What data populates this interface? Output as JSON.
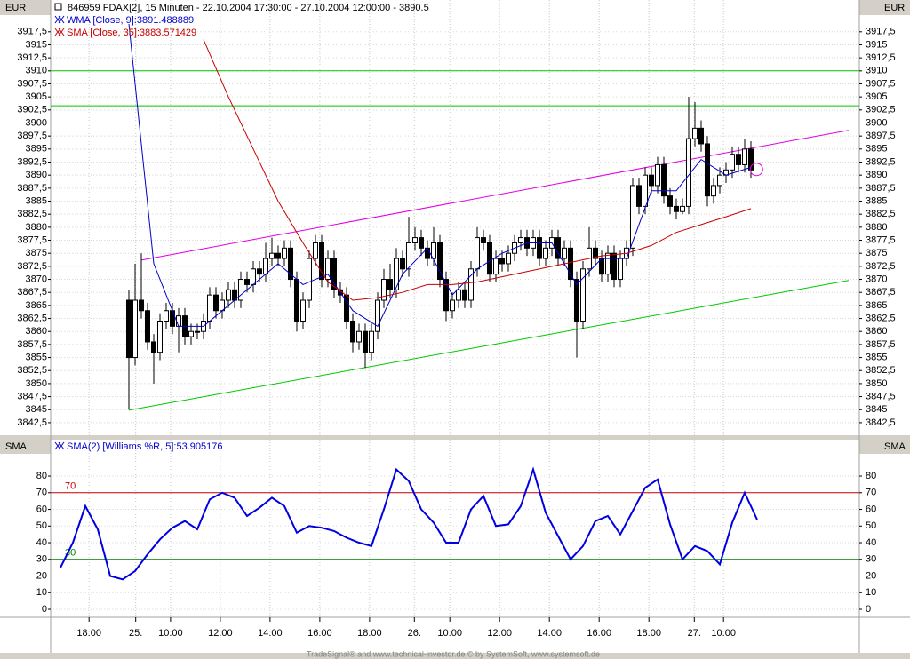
{
  "chart_data": [
    {
      "type": "candlestick",
      "title": "846959  FDAX[2], 15 Minuten - 22.10.2004 17:30:00 - 27.10.2004 12:00:00 - 3890.5",
      "y_label": "EUR",
      "xlim": [
        -12.57,
        117.43
      ],
      "ylim": [
        3840.1,
        3923.6
      ],
      "grid": true,
      "yticks": [
        {
          "value": 3842.5,
          "label": "3842,5"
        },
        3845,
        {
          "value": 3847.5,
          "label": "3847,5"
        },
        3850,
        {
          "value": 3852.5,
          "label": "3852,5"
        },
        3855,
        {
          "value": 3857.5,
          "label": "3857,5"
        },
        3860,
        {
          "value": 3862.5,
          "label": "3862,5"
        },
        3865,
        {
          "value": 3867.5,
          "label": "3867,5"
        },
        3870,
        {
          "value": 3872.5,
          "label": "3872,5"
        },
        3875,
        {
          "value": 3877.5,
          "label": "3877,5"
        },
        3880,
        {
          "value": 3882.5,
          "label": "3882,5"
        },
        3885,
        {
          "value": 3887.5,
          "label": "3887,5"
        },
        3890,
        {
          "value": 3892.5,
          "label": "3892,5"
        },
        3895,
        {
          "value": 3897.5,
          "label": "3897,5"
        },
        3900,
        {
          "value": 3902.5,
          "label": "3902,5"
        },
        3905,
        {
          "value": 3907.5,
          "label": "3907,5"
        },
        3910,
        {
          "value": 3912.5,
          "label": "3912,5"
        },
        3915,
        {
          "value": 3917.5,
          "label": "3917,5"
        }
      ],
      "x": [
        0,
        1,
        2,
        3,
        4,
        5,
        6,
        7,
        8,
        9,
        10,
        11,
        12,
        13,
        14,
        15,
        16,
        17,
        18,
        19,
        20,
        21,
        22,
        23,
        24,
        25,
        26,
        27,
        28,
        29,
        30,
        31,
        32,
        33,
        34,
        35,
        36,
        37,
        38,
        39,
        40,
        41,
        42,
        43,
        44,
        45,
        46,
        47,
        48,
        49,
        50,
        51,
        52,
        53,
        54,
        55,
        56,
        57,
        58,
        59,
        60,
        61,
        62,
        63,
        64,
        65,
        66,
        67,
        68,
        69,
        70,
        71,
        72,
        73,
        74,
        75,
        76,
        77,
        78,
        79,
        80,
        81,
        82,
        83,
        84,
        85,
        86,
        87,
        88,
        89,
        90,
        91,
        92,
        93,
        94,
        95,
        96,
        97,
        98,
        99,
        100
      ],
      "open": [
        3866,
        3855,
        3866,
        3864,
        3858,
        3856,
        3862,
        3864,
        3861,
        3863,
        3859,
        3860,
        3860,
        3862,
        3867,
        3864,
        3866,
        3868,
        3866,
        3870,
        3869,
        3872,
        3871,
        3874,
        3875,
        3874,
        3876,
        3870,
        3862,
        3866,
        3874,
        3877,
        3870,
        3874,
        3868,
        3867,
        3862,
        3858,
        3860,
        3856,
        3860,
        3866,
        3870,
        3868,
        3874,
        3872,
        3877,
        3878,
        3876,
        3874,
        3877,
        3870,
        3864,
        3866,
        3868,
        3866,
        3872,
        3878,
        3877,
        3871,
        3874,
        3873,
        3875,
        3877,
        3878,
        3876,
        3878,
        3874,
        3876,
        3878,
        3874,
        3876,
        3870,
        3862,
        3872,
        3876,
        3874,
        3871,
        3875,
        3870,
        3874,
        3876,
        3888,
        3884,
        3890,
        3888,
        3892,
        3886,
        3884,
        3883,
        3884,
        3897,
        3899,
        3896,
        3886,
        3888,
        3890,
        3891,
        3894,
        3892,
        3895
      ],
      "high": [
        3868,
        3873,
        3875,
        3865.5,
        3859.5,
        3863.5,
        3865.5,
        3865.5,
        3864.5,
        3864.5,
        3861.5,
        3861.5,
        3863.5,
        3868.5,
        3868.5,
        3867.5,
        3869.5,
        3869.5,
        3871.5,
        3871.5,
        3873.5,
        3873.5,
        3877,
        3878,
        3876.5,
        3877.5,
        3877.5,
        3871.5,
        3867.5,
        3875.5,
        3878.5,
        3878.5,
        3875.5,
        3875.5,
        3869.5,
        3868.5,
        3863.5,
        3861.5,
        3861.5,
        3861.5,
        3867.5,
        3872,
        3873,
        3876,
        3875.5,
        3882,
        3880,
        3879.5,
        3877.5,
        3880,
        3878.5,
        3871.5,
        3867.5,
        3869.5,
        3869.5,
        3873.5,
        3880,
        3879.5,
        3878.5,
        3875.5,
        3875.5,
        3876.5,
        3878.5,
        3879.5,
        3879.5,
        3879.5,
        3879.5,
        3877.5,
        3879.5,
        3879.5,
        3877.5,
        3877.5,
        3871.5,
        3873.5,
        3880,
        3877.5,
        3875.5,
        3876.5,
        3876.5,
        3875.5,
        3877.5,
        3889.5,
        3889.5,
        3891.5,
        3891.5,
        3893.5,
        3893.5,
        3887.5,
        3885.5,
        3885.5,
        3905,
        3904,
        3900.5,
        3897.5,
        3889.5,
        3891.5,
        3892.5,
        3895.5,
        3895.5,
        3897,
        3896.5
      ],
      "low": [
        3845,
        3853.5,
        3862.5,
        3856.5,
        3850,
        3854.5,
        3860.5,
        3859.5,
        3856,
        3857.5,
        3857.5,
        3858.5,
        3858.5,
        3860.5,
        3862.5,
        3862.5,
        3864.5,
        3864.5,
        3864.5,
        3867.5,
        3867.5,
        3869.5,
        3869.5,
        3872.5,
        3872.5,
        3872.5,
        3868.5,
        3860,
        3860.5,
        3864.5,
        3872.5,
        3868.5,
        3868.5,
        3866.5,
        3865.5,
        3860.5,
        3856,
        3856.5,
        3853,
        3854.5,
        3858.5,
        3864.5,
        3866.5,
        3866.5,
        3870.5,
        3870.5,
        3875.5,
        3874.5,
        3872.5,
        3872.5,
        3868.5,
        3862,
        3862.5,
        3864.5,
        3864.5,
        3864.5,
        3870.5,
        3875.5,
        3869.5,
        3869.5,
        3871.5,
        3871.5,
        3873.5,
        3875.5,
        3874.5,
        3874.5,
        3872.5,
        3872.5,
        3874.5,
        3872.5,
        3872.5,
        3868.5,
        3855,
        3860.5,
        3870.5,
        3872.5,
        3869.5,
        3869.5,
        3868.5,
        3868.5,
        3872.5,
        3874.5,
        3882.5,
        3882.5,
        3886.5,
        3886.5,
        3884.5,
        3882.5,
        3881.5,
        3882.5,
        3882.5,
        3895.5,
        3894.5,
        3884,
        3884.5,
        3886.5,
        3888.5,
        3889.5,
        3890.5,
        3890.5,
        3889.5
      ],
      "close": [
        3855,
        3866,
        3864,
        3858,
        3856,
        3862,
        3864,
        3861,
        3863,
        3859,
        3860,
        3860,
        3862,
        3867,
        3864,
        3866,
        3868,
        3866,
        3870,
        3869,
        3872,
        3871,
        3874,
        3875,
        3874,
        3876,
        3870,
        3862,
        3866,
        3874,
        3877,
        3870,
        3874,
        3868,
        3867,
        3862,
        3858,
        3860,
        3856,
        3860,
        3866,
        3870,
        3868,
        3874,
        3872,
        3877,
        3878,
        3876,
        3874,
        3877,
        3870,
        3864,
        3866,
        3868,
        3866,
        3872,
        3878,
        3877,
        3871,
        3874,
        3873,
        3875,
        3877,
        3878,
        3876,
        3878,
        3874,
        3876,
        3878,
        3874,
        3876,
        3870,
        3862,
        3872,
        3876,
        3874,
        3871,
        3875,
        3870,
        3874,
        3876,
        3888,
        3884,
        3890,
        3888,
        3892,
        3886,
        3884,
        3883,
        3884,
        3897,
        3899,
        3896,
        3886,
        3888,
        3890,
        3891,
        3894,
        3892,
        3895,
        3891
      ],
      "up_color": "#ffffff",
      "down_color": "#000000",
      "series": [
        {
          "name": "WMA [Close, 9]:3891.488889",
          "color": "#0000c8",
          "x": [
            0,
            4,
            8,
            12,
            16,
            20,
            24,
            28,
            32,
            36,
            40,
            44,
            48,
            52,
            56,
            60,
            64,
            68,
            72,
            76,
            80,
            84,
            88,
            92,
            96,
            100
          ],
          "values": [
            3919,
            3873,
            3861,
            3861,
            3865,
            3869,
            3873,
            3869,
            3871,
            3864,
            3861,
            3871,
            3876,
            3867,
            3872,
            3875,
            3877,
            3877,
            3869,
            3874,
            3874,
            3887,
            3887,
            3893,
            3890,
            3891.49
          ]
        },
        {
          "name": "SMA [Close, 35]:3883.571429",
          "color": "#c80000",
          "x": [
            12,
            16,
            20,
            24,
            28,
            32,
            36,
            40,
            44,
            48,
            52,
            56,
            60,
            64,
            68,
            72,
            76,
            80,
            84,
            88,
            92,
            96,
            100
          ],
          "values": [
            3916,
            3905,
            3895,
            3885,
            3877,
            3869.5,
            3866,
            3866.5,
            3867.5,
            3869,
            3869,
            3869.5,
            3870.5,
            3871.5,
            3872.5,
            3873.5,
            3874.5,
            3875,
            3876.5,
            3879,
            3880.5,
            3882,
            3883.57
          ]
        }
      ],
      "hlines": [
        {
          "value": 3910,
          "color": "#00c800"
        },
        {
          "value": 3903.3,
          "color": "#00c800"
        }
      ],
      "trendlines": [
        {
          "color": "#e000e0",
          "x": [
            2,
            115.7
          ],
          "y": [
            3873.7,
            3898.6
          ]
        },
        {
          "color": "#00c800",
          "x": [
            0,
            115.7
          ],
          "y": [
            3844.9,
            3869.8
          ]
        }
      ],
      "marker": {
        "color": "#e000e0",
        "x": 100.9,
        "y": 3891.1
      }
    },
    {
      "type": "line",
      "y_label": "SMA",
      "xlim": [
        -12.57,
        117.43
      ],
      "ylim": [
        -4.8,
        101.9
      ],
      "yticks": [
        0,
        10,
        20,
        30,
        40,
        50,
        60,
        70,
        80
      ],
      "xticks": [
        {
          "value": -6.4,
          "label": "18:00"
        },
        {
          "value": 1.1,
          "label": "25."
        },
        {
          "value": 6.7,
          "label": "10:00"
        },
        {
          "value": 14.7,
          "label": "12:00"
        },
        {
          "value": 22.7,
          "label": "14:00"
        },
        {
          "value": 30.7,
          "label": "16:00"
        },
        {
          "value": 38.7,
          "label": "18:00"
        },
        {
          "value": 45.9,
          "label": "26."
        },
        {
          "value": 51.6,
          "label": "10:00"
        },
        {
          "value": 59.6,
          "label": "12:00"
        },
        {
          "value": 67.6,
          "label": "14:00"
        },
        {
          "value": 75.6,
          "label": "16:00"
        },
        {
          "value": 83.6,
          "label": "18:00"
        },
        {
          "value": 90.9,
          "label": "27."
        },
        {
          "value": 95.6,
          "label": "10:00"
        }
      ],
      "series": [
        {
          "name": "SMA(2) [Williams %R, 5]:53.905176",
          "color": "#0000e0",
          "x": [
            -11,
            -9,
            -7,
            -5,
            -3,
            -1,
            1,
            3,
            5,
            7,
            9,
            11,
            13,
            15,
            17,
            19,
            21,
            23,
            25,
            27,
            29,
            31,
            33,
            35,
            37,
            39,
            41,
            43,
            45,
            47,
            49,
            51,
            53,
            55,
            57,
            59,
            61,
            63,
            65,
            67,
            69,
            71,
            73,
            75,
            77,
            79,
            81,
            83,
            85,
            87,
            89,
            91,
            93,
            95,
            97,
            99,
            101
          ],
          "values": [
            25,
            40,
            62,
            48,
            20,
            18,
            23,
            33,
            42,
            49,
            53,
            48,
            66,
            70,
            67,
            56,
            61,
            67,
            62,
            46,
            50,
            49,
            47,
            43,
            40,
            38,
            60,
            84,
            77,
            60,
            52,
            40,
            40,
            60,
            68,
            50,
            51,
            62,
            84,
            58,
            44,
            30,
            38,
            53,
            56,
            45,
            59,
            73,
            78,
            51,
            30,
            38,
            35,
            27,
            52,
            70,
            53.9
          ]
        }
      ],
      "hlines": [
        {
          "value": 70,
          "color": "#c80000"
        },
        {
          "value": 30,
          "color": "#008000"
        }
      ]
    }
  ],
  "footer": "TradeSignal® and www.technical-investor.de © by SystemSoft, www.systemsoft.de"
}
